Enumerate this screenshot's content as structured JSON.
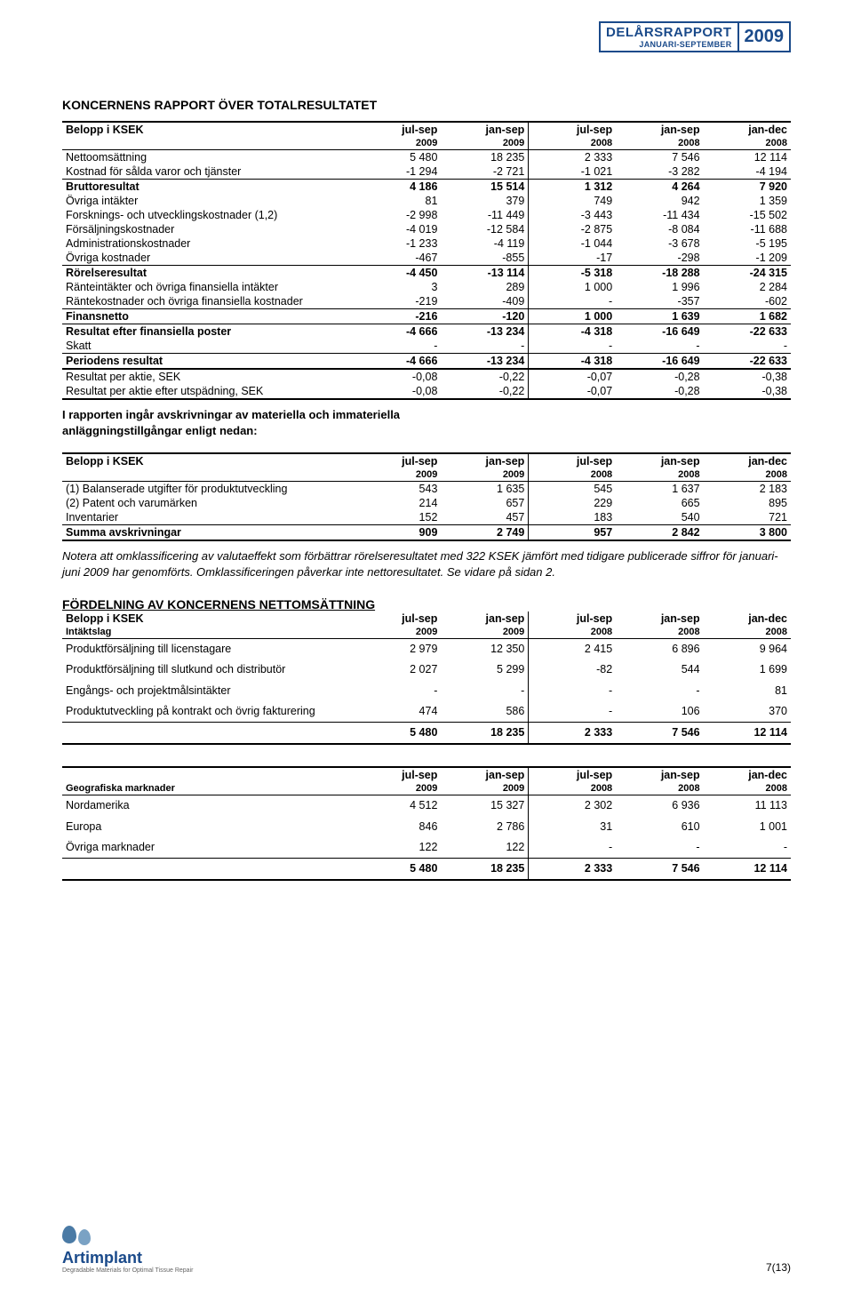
{
  "header": {
    "title_line1": "DELÅRSRAPPORT",
    "title_line2": "JANUARI-SEPTEMBER",
    "year": "2009"
  },
  "section1_title": "KONCERNENS RAPPORT ÖVER TOTALRESULTATET",
  "periods": {
    "label": "Belopp i KSEK",
    "cols": [
      "jul-sep",
      "jan-sep",
      "jul-sep",
      "jan-sep",
      "jan-dec"
    ],
    "years": [
      "2009",
      "2009",
      "2008",
      "2008",
      "2008"
    ]
  },
  "t1_rows": {
    "r0": {
      "label": "Nettoomsättning",
      "v": [
        "5 480",
        "18 235",
        "2 333",
        "7 546",
        "12 114"
      ],
      "bold": false
    },
    "r1": {
      "label": "Kostnad för sålda varor och tjänster",
      "v": [
        "-1 294",
        "-2 721",
        "-1 021",
        "-3 282",
        "-4 194"
      ],
      "bold": false,
      "bb": true
    },
    "r2": {
      "label": "Bruttoresultat",
      "v": [
        "4 186",
        "15 514",
        "1 312",
        "4 264",
        "7 920"
      ],
      "bold": true
    },
    "r3": {
      "label": "Övriga intäkter",
      "v": [
        "81",
        "379",
        "749",
        "942",
        "1 359"
      ],
      "bold": false
    },
    "r4": {
      "label": "Forsknings- och utvecklingskostnader (1,2)",
      "v": [
        "-2 998",
        "-11 449",
        "-3 443",
        "-11 434",
        "-15 502"
      ],
      "bold": false
    },
    "r5": {
      "label": "Försäljningskostnader",
      "v": [
        "-4 019",
        "-12 584",
        "-2 875",
        "-8 084",
        "-11 688"
      ],
      "bold": false
    },
    "r6": {
      "label": "Administrationskostnader",
      "v": [
        "-1 233",
        "-4 119",
        "-1 044",
        "-3 678",
        "-5 195"
      ],
      "bold": false
    },
    "r7": {
      "label": "Övriga kostnader",
      "v": [
        "-467",
        "-855",
        "-17",
        "-298",
        "-1 209"
      ],
      "bold": false,
      "bb": true
    },
    "r8": {
      "label": "Rörelseresultat",
      "v": [
        "-4 450",
        "-13 114",
        "-5 318",
        "-18 288",
        "-24 315"
      ],
      "bold": true
    },
    "r9": {
      "label": "Ränteintäkter och övriga finansiella intäkter",
      "v": [
        "3",
        "289",
        "1 000",
        "1 996",
        "2 284"
      ],
      "bold": false
    },
    "r10": {
      "label": "Räntekostnader och övriga finansiella kostnader",
      "v": [
        "-219",
        "-409",
        "-",
        "-357",
        "-602"
      ],
      "bold": false,
      "bb": true
    },
    "r11": {
      "label": "Finansnetto",
      "v": [
        "-216",
        "-120",
        "1 000",
        "1 639",
        "1 682"
      ],
      "bold": true,
      "bb": true
    },
    "r12": {
      "label": "Resultat efter finansiella poster",
      "v": [
        "-4 666",
        "-13 234",
        "-4 318",
        "-16 649",
        "-22 633"
      ],
      "bold": true
    },
    "r13": {
      "label": "Skatt",
      "v": [
        "-",
        "-",
        "-",
        "-",
        "-"
      ],
      "bold": false,
      "bb": true
    },
    "r14": {
      "label": "Periodens resultat",
      "v": [
        "-4 666",
        "-13 234",
        "-4 318",
        "-16 649",
        "-22 633"
      ],
      "bold": true,
      "bbthick": true
    },
    "r15": {
      "label": "Resultat per aktie, SEK",
      "v": [
        "-0,08",
        "-0,22",
        "-0,07",
        "-0,28",
        "-0,38"
      ],
      "bold": false
    },
    "r16": {
      "label": "Resultat per aktie efter utspädning, SEK",
      "v": [
        "-0,08",
        "-0,22",
        "-0,07",
        "-0,28",
        "-0,38"
      ],
      "bold": false,
      "bbthick": true
    }
  },
  "note1a": "I rapporten ingår avskrivningar av materiella och immateriella",
  "note1b": "anläggningstillgångar enligt nedan:",
  "t2_header_label": "Belopp i KSEK",
  "t2_rows": {
    "r0": {
      "label": "(1) Balanserade utgifter för produktutveckling",
      "v": [
        "543",
        "1 635",
        "545",
        "1 637",
        "2 183"
      ]
    },
    "r1": {
      "label": "(2) Patent och varumärken",
      "v": [
        "214",
        "657",
        "229",
        "665",
        "895"
      ]
    },
    "r2": {
      "label": "Inventarier",
      "v": [
        "152",
        "457",
        "183",
        "540",
        "721"
      ],
      "bb": true
    },
    "r3": {
      "label": "Summa avskrivningar",
      "v": [
        "909",
        "2 749",
        "957",
        "2 842",
        "3 800"
      ],
      "bold": true,
      "bbthick": true
    }
  },
  "note2": "Notera att omklassificering av valutaeffekt som förbättrar rörelseresultatet med 322 KSEK jämfört med tidigare publicerade siffror för januari-juni 2009 har genomförts. Omklassificeringen påverkar inte nettoresultatet. Se vidare på sidan 2.",
  "section3_title": "FÖRDELNING AV KONCERNENS NETTOMSÄTTNING",
  "t3_header_label": "Belopp i KSEK",
  "t3_header_sub": "Intäktslag",
  "t3_rows": {
    "r0": {
      "label": "Produktförsäljning till licenstagare",
      "v": [
        "2 979",
        "12 350",
        "2 415",
        "6 896",
        "9 964"
      ]
    },
    "r1": {
      "label": "Produktförsäljning till slutkund och distributör",
      "v": [
        "2 027",
        "5 299",
        "-82",
        "544",
        "1 699"
      ]
    },
    "r2": {
      "label": "Engångs- och projektmålsintäkter",
      "v": [
        "-",
        "-",
        "-",
        "-",
        "81"
      ]
    },
    "r3": {
      "label": "Produktutveckling på kontrakt och övrig fakturering",
      "v": [
        "474",
        "586",
        "-",
        "106",
        "370"
      ],
      "bb": true
    },
    "r4": {
      "label": "",
      "v": [
        "5 480",
        "18 235",
        "2 333",
        "7 546",
        "12 114"
      ],
      "bold": true,
      "bbthick": true
    }
  },
  "t4_header_sub": "Geografiska marknader",
  "t4_rows": {
    "r0": {
      "label": "Nordamerika",
      "v": [
        "4 512",
        "15 327",
        "2 302",
        "6 936",
        "11 113"
      ]
    },
    "r1": {
      "label": "Europa",
      "v": [
        "846",
        "2 786",
        "31",
        "610",
        "1 001"
      ]
    },
    "r2": {
      "label": "Övriga marknader",
      "v": [
        "122",
        "122",
        "-",
        "-",
        "-"
      ],
      "bb": true
    },
    "r3": {
      "label": "",
      "v": [
        "5 480",
        "18 235",
        "2 333",
        "7 546",
        "12 114"
      ],
      "bold": true,
      "bbthick": true
    }
  },
  "footer": {
    "logo_name": "Artimplant",
    "logo_sub": "Degradable Materials for Optimal Tissue Repair",
    "page": "7(13)"
  },
  "col_widths": [
    "40%",
    "12%",
    "12%",
    "12%",
    "12%",
    "12%"
  ]
}
